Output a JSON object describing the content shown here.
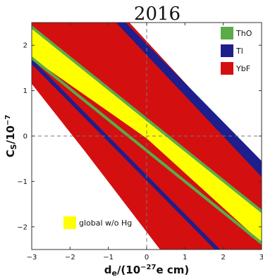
{
  "chart_data": {
    "type": "area",
    "title": "2016",
    "xlabel_main": "d",
    "xlabel_sub": "e",
    "xlabel_rest": "/(10",
    "xlabel_sup": "−27",
    "xlabel_tail": "e cm)",
    "ylabel_main": "C",
    "ylabel_sub": "S",
    "ylabel_rest": "/10",
    "ylabel_sup": "−7",
    "xlim": [
      -3,
      3
    ],
    "ylim": [
      -2.5,
      2.5
    ],
    "x_ticks": [
      -3,
      -2,
      -1,
      0,
      1,
      2,
      3
    ],
    "x_tick_labels": [
      "−3",
      "−2",
      "−1",
      "0",
      "1",
      "2",
      "3"
    ],
    "y_ticks": [
      -2,
      -1,
      0,
      1,
      2
    ],
    "y_tick_labels": [
      "−2",
      "−1",
      "0",
      "1",
      "2"
    ],
    "reference_lines": {
      "x": 0,
      "y": 0
    },
    "series": [
      {
        "name": "YbF",
        "color": "#d40f0f",
        "polygon": [
          [
            -3,
            1.15
          ],
          [
            -3,
            2.5
          ],
          [
            -0.45,
            2.5
          ],
          [
            3,
            -0.65
          ],
          [
            3,
            -2.5
          ],
          [
            0.35,
            -2.5
          ],
          [
            -1.6,
            -0.35
          ]
        ]
      },
      {
        "name": "Tl",
        "color": "#1e1e8c",
        "polygon": [
          [
            -0.55,
            2.5
          ],
          [
            -0.8,
            2.5
          ],
          [
            3,
            -0.9
          ],
          [
            3,
            -0.55
          ]
        ]
      },
      {
        "name": "Tl",
        "color": "#1e1e8c",
        "polygon": [
          [
            -3,
            1.7
          ],
          [
            -3,
            1.58
          ],
          [
            1.78,
            -2.5
          ],
          [
            1.92,
            -2.5
          ]
        ]
      },
      {
        "name": "global w/o Hg",
        "color": "#ffff00",
        "polygon": [
          [
            -3,
            2.4
          ],
          [
            -3,
            1.72
          ],
          [
            0,
            -0.05
          ],
          [
            3,
            -2.35
          ],
          [
            3,
            -1.68
          ]
        ]
      },
      {
        "name": "ThO",
        "color": "#5aab4a",
        "polygon": [
          [
            -3,
            2.44
          ],
          [
            -3,
            2.36
          ],
          [
            3,
            -1.7
          ],
          [
            3,
            -1.62
          ]
        ]
      },
      {
        "name": "ThO",
        "color": "#5aab4a",
        "polygon": [
          [
            -3,
            1.76
          ],
          [
            -3,
            1.68
          ],
          [
            3,
            -2.4
          ],
          [
            3,
            -2.32
          ]
        ]
      }
    ],
    "legend": [
      {
        "label": "ThO",
        "color": "#5aab4a"
      },
      {
        "label": "Tl",
        "color": "#1e1e8c"
      },
      {
        "label": "YbF",
        "color": "#d40f0f"
      }
    ],
    "inner_legend": {
      "label": "global w/o Hg",
      "color": "#ffff00"
    },
    "legend_position": "top-right"
  }
}
